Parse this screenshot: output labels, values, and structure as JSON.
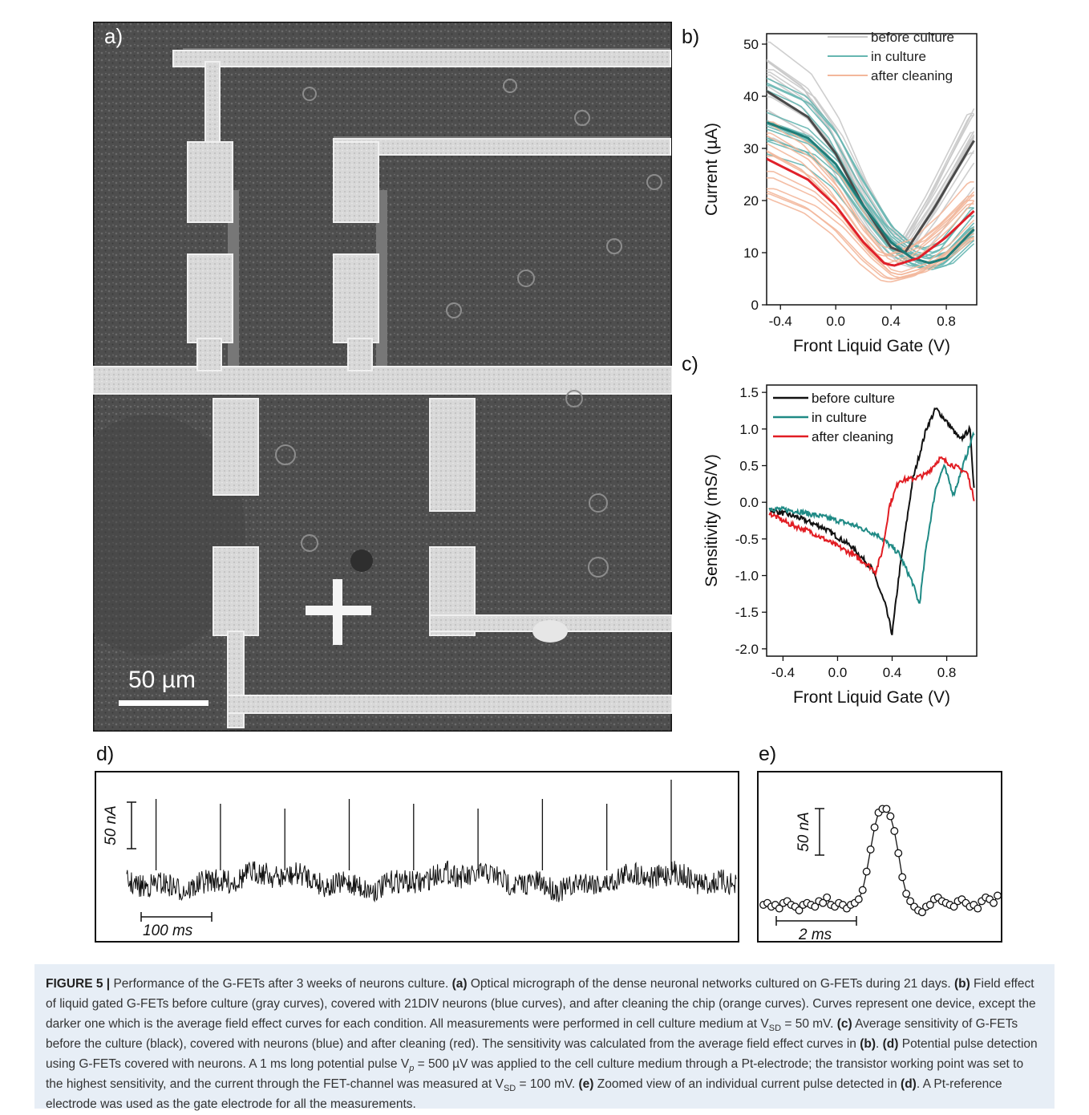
{
  "panels": {
    "a": "a)",
    "b": "b)",
    "c": "c)",
    "d": "d)",
    "e": "e)"
  },
  "micrograph": {
    "scale_bar": "50 µm"
  },
  "chart_data": [
    {
      "panel": "b",
      "type": "line",
      "xlabel": "Front Liquid Gate (V)",
      "ylabel": "Current (µA)",
      "xlim": [
        -0.5,
        1.02
      ],
      "ylim": [
        0,
        52
      ],
      "xticks": [
        "-0.4",
        "0.0",
        "0.4",
        "0.8"
      ],
      "yticks": [
        "0",
        "10",
        "20",
        "30",
        "40",
        "50"
      ],
      "legend_position": "top-right",
      "series": [
        {
          "name": "before culture",
          "color": "#c9c9c9",
          "avg_color": "#4a4a4a",
          "average": {
            "x": [
              -0.5,
              -0.2,
              0.0,
              0.2,
              0.4,
              0.5,
              0.7,
              1.0
            ],
            "y": [
              41,
              36,
              29,
              19,
              11,
              10,
              18,
              31.5
            ]
          }
        },
        {
          "name": "in culture",
          "color": "#66b6b1",
          "avg_color": "#1f7d78",
          "average": {
            "x": [
              -0.5,
              -0.2,
              0.0,
              0.2,
              0.4,
              0.55,
              0.68,
              0.8,
              1.0
            ],
            "y": [
              35,
              32,
              27,
              19,
              12,
              9,
              8,
              9,
              14.5
            ]
          }
        },
        {
          "name": "after cleaning",
          "color": "#f3b79b",
          "avg_color": "#e0202a",
          "average": {
            "x": [
              -0.5,
              -0.2,
              0.0,
              0.2,
              0.35,
              0.42,
              0.6,
              0.8,
              1.0
            ],
            "y": [
              28,
              24,
              19,
              12,
              8,
              7.5,
              9,
              13,
              18
            ]
          }
        }
      ]
    },
    {
      "panel": "c",
      "type": "line",
      "xlabel": "Front Liquid Gate (V)",
      "ylabel": "Sensitivity (mS/V)",
      "xlim": [
        -0.52,
        1.02
      ],
      "ylim": [
        -2.1,
        1.6
      ],
      "xticks": [
        "-0.4",
        "0.0",
        "0.4",
        "0.8"
      ],
      "yticks": [
        "-2.0",
        "-1.5",
        "-1.0",
        "-0.5",
        "0.0",
        "0.5",
        "1.0",
        "1.5"
      ],
      "legend_position": "top-left",
      "series": [
        {
          "name": "before culture",
          "color": "#111111",
          "x": [
            -0.5,
            -0.3,
            -0.1,
            0.1,
            0.25,
            0.35,
            0.4,
            0.45,
            0.55,
            0.65,
            0.72,
            0.8,
            0.9,
            0.97,
            1.0
          ],
          "y": [
            -0.1,
            -0.2,
            -0.35,
            -0.6,
            -0.9,
            -1.4,
            -1.8,
            -1.0,
            0.3,
            1.0,
            1.28,
            1.1,
            0.85,
            1.0,
            0.2
          ]
        },
        {
          "name": "in culture",
          "color": "#1f8a85",
          "x": [
            -0.5,
            -0.3,
            -0.1,
            0.1,
            0.3,
            0.45,
            0.55,
            0.6,
            0.65,
            0.72,
            0.78,
            0.85,
            0.92,
            1.0
          ],
          "y": [
            -0.08,
            -0.12,
            -0.2,
            -0.3,
            -0.45,
            -0.7,
            -1.1,
            -1.4,
            -0.6,
            0.2,
            0.5,
            0.1,
            0.5,
            0.95
          ]
        },
        {
          "name": "after cleaning",
          "color": "#e11d23",
          "x": [
            -0.5,
            -0.35,
            -0.2,
            -0.05,
            0.1,
            0.22,
            0.28,
            0.33,
            0.38,
            0.45,
            0.55,
            0.65,
            0.75,
            0.85,
            0.95,
            1.0
          ],
          "y": [
            -0.15,
            -0.3,
            -0.4,
            -0.55,
            -0.7,
            -0.85,
            -0.95,
            -0.65,
            -0.05,
            0.3,
            0.32,
            0.38,
            0.6,
            0.5,
            0.4,
            0.05
          ]
        }
      ]
    },
    {
      "panel": "d",
      "type": "line",
      "scale_bar_y": "50 nA",
      "scale_bar_x": "100 ms",
      "spike_positions": [
        0.02,
        0.13,
        0.24,
        0.35,
        0.46,
        0.57,
        0.68,
        0.79,
        0.9
      ]
    },
    {
      "panel": "e",
      "type": "scatter",
      "scale_bar_y": "50 nA",
      "scale_bar_x": "2 ms",
      "x": [
        0,
        1,
        2,
        3,
        4,
        5,
        6,
        7,
        8,
        9,
        10,
        11,
        12,
        13,
        14,
        15,
        16,
        17,
        18,
        19,
        20,
        21,
        22,
        23,
        24,
        25,
        26,
        27,
        28,
        29,
        30,
        31,
        32,
        33,
        34,
        35,
        36,
        37,
        38,
        39,
        40,
        41,
        42,
        43,
        44,
        45,
        46,
        47,
        48,
        49,
        50,
        51,
        52,
        53,
        54,
        55,
        56,
        57,
        58,
        59
      ],
      "y": [
        0,
        1,
        -1,
        0,
        -2,
        1,
        2,
        0,
        -1,
        -3,
        0,
        1,
        0,
        -1,
        2,
        1,
        4,
        0,
        -1,
        1,
        0,
        -2,
        0,
        1,
        3,
        8,
        18,
        30,
        42,
        50,
        52,
        52,
        48,
        40,
        28,
        15,
        6,
        2,
        -1,
        -3,
        -4,
        -1,
        0,
        3,
        4,
        2,
        1,
        0,
        -1,
        2,
        3,
        1,
        -1,
        0,
        -2,
        2,
        4,
        3,
        1,
        5
      ]
    }
  ],
  "caption": {
    "label": "FIGURE 5 |",
    "intro": " Performance of the G-FETs after 3 weeks of neurons culture. ",
    "a_ref": "(a)",
    "a_text": " Optical micrograph of the dense neuronal networks cultured on G-FETs during 21 days. ",
    "b_ref": "(b)",
    "b_text": " Field effect of liquid gated G-FETs before culture (gray curves), covered with 21DIV neurons (blue curves), and after cleaning the chip (orange curves). Curves represent one device, except the darker one which is the average field effect curves for each condition. All measurements were performed in cell culture medium at V",
    "sd": "SD",
    "b_text2": " = 50 mV. ",
    "c_ref": "(c)",
    "c_text": " Average sensitivity of G-FETs before the culture (black), covered with neurons (blue) and after cleaning (red). The sensitivity was calculated from the average field effect curves in ",
    "c_text_ref": "(b)",
    "c_text_end": ". ",
    "d_ref": "(d)",
    "d_text": " Potential pulse detection using G-FETs covered with neurons. A 1 ms long potential pulse V",
    "p": "p",
    "d_text2": " = 500 µV was applied to the cell culture medium through a Pt-electrode; the transistor working point was set to the highest sensitivity, and the current through the FET-channel was measured at V",
    "sd2": "SD",
    "d_text3": " = 100 mV. ",
    "e_ref": "(e)",
    "e_text": " Zoomed view of an individual current pulse detected in ",
    "e_text_ref": "(d)",
    "e_text_end": ". A Pt-reference electrode was used as the gate electrode for all the measurements."
  }
}
